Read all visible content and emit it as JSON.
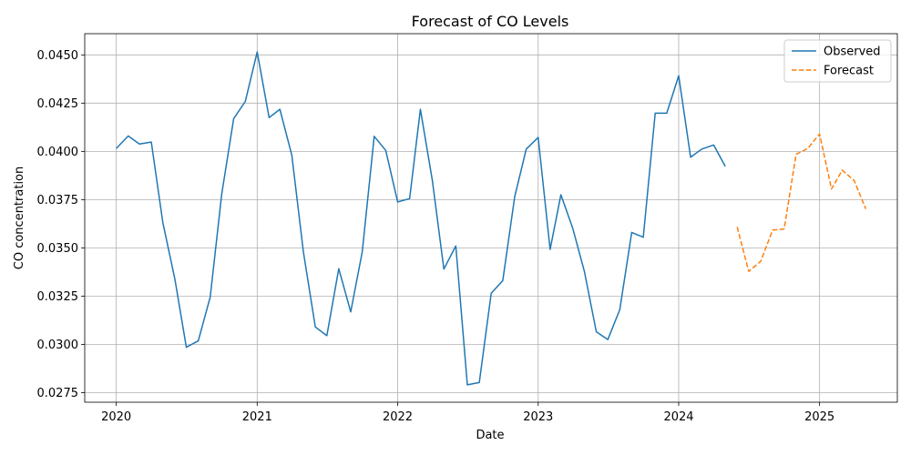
{
  "chart_data": {
    "type": "line",
    "title": "Forecast of CO Levels",
    "xlabel": "Date",
    "ylabel": "CO concentration",
    "xlim": [
      "2019-10-11",
      "2025-07-22"
    ],
    "ylim": [
      0.027,
      0.0461
    ],
    "grid": true,
    "legend_position": "top-right",
    "x_ticks": [
      {
        "value": "2020-01-01",
        "label": "2020"
      },
      {
        "value": "2021-01-01",
        "label": "2021"
      },
      {
        "value": "2022-01-01",
        "label": "2022"
      },
      {
        "value": "2023-01-01",
        "label": "2023"
      },
      {
        "value": "2024-01-01",
        "label": "2024"
      },
      {
        "value": "2025-01-01",
        "label": "2025"
      }
    ],
    "y_ticks": [
      {
        "value": 0.0275,
        "label": "0.0275"
      },
      {
        "value": 0.03,
        "label": "0.0300"
      },
      {
        "value": 0.0325,
        "label": "0.0325"
      },
      {
        "value": 0.035,
        "label": "0.0350"
      },
      {
        "value": 0.0375,
        "label": "0.0375"
      },
      {
        "value": 0.04,
        "label": "0.0400"
      },
      {
        "value": 0.0425,
        "label": "0.0425"
      },
      {
        "value": 0.045,
        "label": "0.0450"
      }
    ],
    "series": [
      {
        "name": "Observed",
        "color": "#1f77b4",
        "style": "solid",
        "points": [
          [
            "2020-01-01",
            0.04015
          ],
          [
            "2020-02-01",
            0.0408
          ],
          [
            "2020-03-01",
            0.04038
          ],
          [
            "2020-04-01",
            0.04048
          ],
          [
            "2020-05-01",
            0.0363
          ],
          [
            "2020-06-01",
            0.0334
          ],
          [
            "2020-07-01",
            0.02985
          ],
          [
            "2020-08-01",
            0.03018
          ],
          [
            "2020-09-01",
            0.03245
          ],
          [
            "2020-10-01",
            0.0378
          ],
          [
            "2020-11-01",
            0.0417
          ],
          [
            "2020-12-01",
            0.04258
          ],
          [
            "2021-01-01",
            0.04515
          ],
          [
            "2021-02-01",
            0.04175
          ],
          [
            "2021-03-01",
            0.04218
          ],
          [
            "2021-04-01",
            0.0398
          ],
          [
            "2021-05-01",
            0.0348
          ],
          [
            "2021-06-01",
            0.0309
          ],
          [
            "2021-07-01",
            0.03045
          ],
          [
            "2021-08-01",
            0.03392
          ],
          [
            "2021-09-01",
            0.03168
          ],
          [
            "2021-10-01",
            0.0348
          ],
          [
            "2021-11-01",
            0.04078
          ],
          [
            "2021-12-01",
            0.04005
          ],
          [
            "2022-01-01",
            0.03738
          ],
          [
            "2022-02-01",
            0.03755
          ],
          [
            "2022-03-01",
            0.04218
          ],
          [
            "2022-04-01",
            0.0385
          ],
          [
            "2022-05-01",
            0.0339
          ],
          [
            "2022-06-01",
            0.0351
          ],
          [
            "2022-07-01",
            0.0279
          ],
          [
            "2022-08-01",
            0.02802
          ],
          [
            "2022-09-01",
            0.03265
          ],
          [
            "2022-10-01",
            0.0333
          ],
          [
            "2022-11-01",
            0.03765
          ],
          [
            "2022-12-01",
            0.04012
          ],
          [
            "2023-01-01",
            0.04072
          ],
          [
            "2023-02-01",
            0.03492
          ],
          [
            "2023-03-01",
            0.03775
          ],
          [
            "2023-04-01",
            0.036
          ],
          [
            "2023-05-01",
            0.03378
          ],
          [
            "2023-06-01",
            0.03065
          ],
          [
            "2023-07-01",
            0.03025
          ],
          [
            "2023-08-01",
            0.0318
          ],
          [
            "2023-09-01",
            0.0358
          ],
          [
            "2023-10-01",
            0.03555
          ],
          [
            "2023-11-01",
            0.04198
          ],
          [
            "2023-12-01",
            0.04198
          ],
          [
            "2024-01-01",
            0.04392
          ],
          [
            "2024-02-01",
            0.0397
          ],
          [
            "2024-03-01",
            0.04012
          ],
          [
            "2024-04-01",
            0.04033
          ],
          [
            "2024-05-01",
            0.03922
          ]
        ]
      },
      {
        "name": "Forecast",
        "color": "#ff7f0e",
        "style": "dashed",
        "points": [
          [
            "2024-06-01",
            0.03608
          ],
          [
            "2024-07-01",
            0.03378
          ],
          [
            "2024-08-01",
            0.0343
          ],
          [
            "2024-09-01",
            0.03592
          ],
          [
            "2024-10-01",
            0.03598
          ],
          [
            "2024-11-01",
            0.03985
          ],
          [
            "2024-12-01",
            0.04015
          ],
          [
            "2025-01-01",
            0.0409
          ],
          [
            "2025-02-01",
            0.03805
          ],
          [
            "2025-03-01",
            0.03903
          ],
          [
            "2025-04-01",
            0.03848
          ],
          [
            "2025-05-01",
            0.03702
          ]
        ]
      }
    ]
  }
}
